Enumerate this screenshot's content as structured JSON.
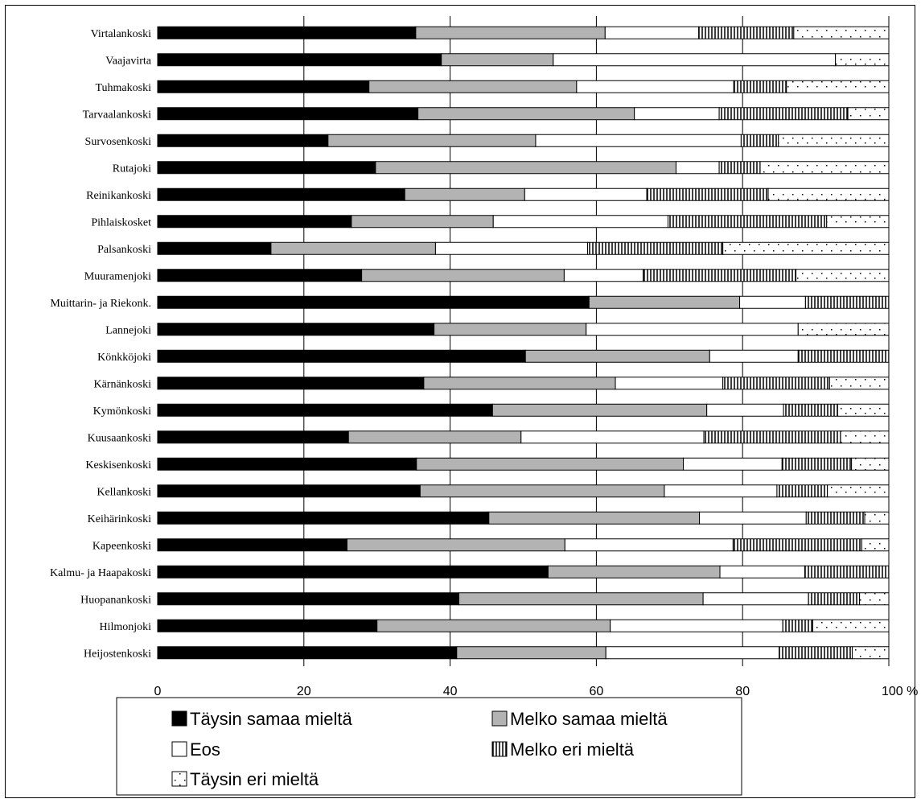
{
  "chart_data": {
    "type": "bar",
    "orientation": "horizontal",
    "stacked": true,
    "percent": true,
    "categories": [
      "Virtalankoski",
      "Vaajavirta",
      "Tuhmakoski",
      "Tarvaalankoski",
      "Survosenkoski",
      "Rutajoki",
      "Reinikankoski",
      "Pihlaiskosket",
      "Palsankoski",
      "Muuramenjoki",
      "Muittarin- ja Riekonk.",
      "Lannejoki",
      "Könkköjoki",
      "Kärnänkoski",
      "Kymönkoski",
      "Kuusaankoski",
      "Keskisenkoski",
      "Kellankoski",
      "Keihärinkoski",
      "Kapeenkoski",
      "Kalmu- ja Haapakoski",
      "Huopanankoski",
      "Hilmonjoki",
      "Heijostenkoski"
    ],
    "series": [
      {
        "name": "Täysin samaa mieltä",
        "pattern": "solid-black",
        "values": [
          35.3,
          38.8,
          28.9,
          35.6,
          23.3,
          29.8,
          33.8,
          26.5,
          15.5,
          27.9,
          59.0,
          37.8,
          50.3,
          36.4,
          45.8,
          26.1,
          35.4,
          35.9,
          45.3,
          25.9,
          53.4,
          41.2,
          30.0,
          40.9
        ]
      },
      {
        "name": "Melko samaa mieltä",
        "pattern": "solid-gray",
        "values": [
          25.9,
          15.3,
          28.4,
          29.6,
          28.4,
          41.1,
          16.4,
          19.4,
          22.5,
          27.7,
          20.6,
          20.8,
          25.2,
          26.2,
          29.3,
          23.6,
          36.5,
          33.4,
          28.8,
          29.8,
          23.5,
          33.4,
          31.9,
          20.4
        ]
      },
      {
        "name": "Eos",
        "pattern": "white",
        "values": [
          12.8,
          38.6,
          21.5,
          11.6,
          28.1,
          5.9,
          16.7,
          23.9,
          20.8,
          10.8,
          9.0,
          29.0,
          12.1,
          14.7,
          10.5,
          25.0,
          13.5,
          15.4,
          14.6,
          23.0,
          11.6,
          14.4,
          23.6,
          23.7
        ]
      },
      {
        "name": "Melko eri mieltä",
        "pattern": "vertical-lines",
        "values": [
          13.0,
          0.0,
          7.2,
          17.6,
          5.1,
          5.6,
          16.6,
          21.7,
          18.5,
          20.9,
          11.4,
          0.0,
          12.4,
          14.6,
          7.4,
          18.7,
          9.5,
          6.9,
          8.0,
          17.6,
          11.5,
          7.0,
          4.1,
          10.0
        ]
      },
      {
        "name": "Täysin eri mieltä",
        "pattern": "dots",
        "values": [
          13.0,
          7.3,
          14.0,
          5.6,
          15.1,
          17.6,
          16.5,
          8.5,
          22.7,
          12.7,
          0.0,
          12.4,
          0.0,
          8.1,
          7.0,
          6.6,
          5.1,
          8.4,
          3.3,
          3.7,
          0.0,
          4.0,
          10.4,
          5.0
        ]
      }
    ],
    "x_axis": {
      "min": 0,
      "max": 100,
      "ticks": [
        "0",
        "20",
        "40",
        "60",
        "80",
        "100 %"
      ],
      "gridlines": "vertical"
    },
    "legend": {
      "position": "bottom",
      "entries": [
        {
          "label": "Täysin samaa mieltä",
          "pattern": "solid-black"
        },
        {
          "label": "Melko samaa mieltä",
          "pattern": "solid-gray"
        },
        {
          "label": "Eos",
          "pattern": "white"
        },
        {
          "label": "Melko eri mieltä",
          "pattern": "vertical-lines"
        },
        {
          "label": "Täysin eri mieltä",
          "pattern": "dots"
        }
      ]
    },
    "colors": {
      "solid-black": "#000000",
      "solid-gray": "#b3b3b3",
      "white": "#ffffff",
      "vertical-lines": "#000000",
      "dots": "#000000",
      "grid": "#000000"
    }
  }
}
